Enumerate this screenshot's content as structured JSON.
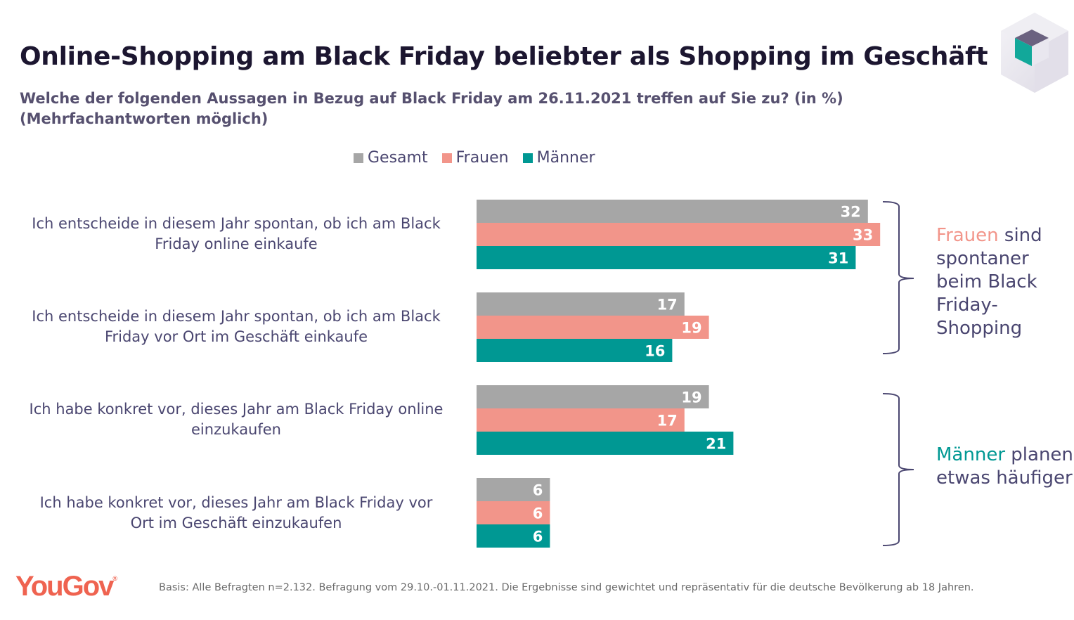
{
  "header": {
    "title": "Online-Shopping am Black Friday beliebter als Shopping im Geschäft",
    "subtitle": "Welche der folgenden Aussagen in Bezug auf Black Friday am 26.11.2021 treffen auf Sie zu? (in %) (Mehrfachantworten möglich)"
  },
  "colors": {
    "gesamt": "#a6a6a6",
    "frauen": "#f2958a",
    "maenner": "#009893",
    "text": "#4a4670",
    "brace": "#4a4670",
    "yougov": "#ef6350"
  },
  "chart_data": {
    "type": "bar",
    "orientation": "horizontal",
    "title": "Online-Shopping am Black Friday beliebter als Shopping im Geschäft",
    "subtitle": "Welche der folgenden Aussagen in Bezug auf Black Friday am 26.11.2021 treffen auf Sie zu? (in %) (Mehrfachantworten möglich)",
    "xlabel": "",
    "ylabel": "",
    "xlim": [
      0,
      35
    ],
    "grid": false,
    "legend_position": "top-center",
    "categories": [
      "Ich entscheide in diesem Jahr spontan, ob ich am Black Friday online einkaufe",
      "Ich entscheide in diesem Jahr spontan, ob ich am Black Friday vor Ort im Geschäft einkaufe",
      "Ich habe konkret vor, dieses Jahr am Black Friday online einzukaufen",
      "Ich habe konkret vor, dieses Jahr am Black Friday vor Ort im Geschäft einzukaufen"
    ],
    "series": [
      {
        "name": "Gesamt",
        "color": "#a6a6a6",
        "values": [
          32,
          17,
          19,
          6
        ]
      },
      {
        "name": "Frauen",
        "color": "#f2958a",
        "values": [
          33,
          19,
          17,
          6
        ]
      },
      {
        "name": "Männer",
        "color": "#009893",
        "values": [
          31,
          16,
          21,
          6
        ]
      }
    ],
    "annotations": [
      {
        "highlight": "Frauen",
        "text": " sind spontaner beim Black Friday-Shopping",
        "groups": [
          0,
          1
        ]
      },
      {
        "highlight": "Männer",
        "text": " planen etwas häufiger",
        "groups": [
          2,
          3
        ]
      }
    ]
  },
  "legend": [
    {
      "label": "Gesamt",
      "color": "#a6a6a6"
    },
    {
      "label": "Frauen",
      "color": "#f2958a"
    },
    {
      "label": "Männer",
      "color": "#009893"
    }
  ],
  "category_labels": [
    {
      "line1": "Ich entscheide in diesem Jahr spontan, ob ich am Black",
      "line2": "Friday online einkaufe"
    },
    {
      "line1": "Ich entscheide in diesem Jahr spontan, ob ich am Black",
      "line2": "Friday vor Ort im Geschäft einkaufe"
    },
    {
      "line1": "Ich habe konkret vor, dieses Jahr am Black Friday online",
      "line2": "einzukaufen"
    },
    {
      "line1": "Ich habe konkret vor, dieses Jahr am Black Friday vor",
      "line2": "Ort im Geschäft einzukaufen"
    }
  ],
  "annotation_1": {
    "highlight": "Frauen",
    "rest_1": " sind",
    "line2": "spontaner",
    "line3": "beim Black",
    "line4": "Friday-",
    "line5": "Shopping"
  },
  "annotation_2": {
    "highlight": "Männer",
    "rest_1": " planen",
    "line2": "etwas häufiger"
  },
  "footer": {
    "logo": "YouGov",
    "logo_mark": "®",
    "note": "Basis: Alle Befragten n=2.132. Befragung vom 29.10.-01.11.2021. Die Ergebnisse sind gewichtet und repräsentativ für die deutsche Bevölkerung ab 18 Jahren."
  }
}
